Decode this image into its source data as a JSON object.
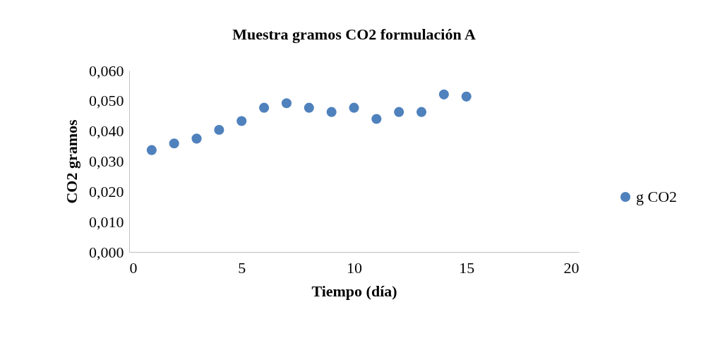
{
  "chart_data": {
    "type": "scatter",
    "title": "Muestra gramos CO2 formulación A",
    "xlabel": "Tiempo (día)",
    "ylabel": "CO2 gramos",
    "x": [
      1,
      2,
      3,
      4,
      5,
      6,
      7,
      8,
      9,
      10,
      11,
      12,
      13,
      14,
      15
    ],
    "series": [
      {
        "name": "g CO2",
        "color": "#4f81bd",
        "values": [
          0.0337,
          0.0359,
          0.0375,
          0.0404,
          0.0433,
          0.0477,
          0.0492,
          0.0477,
          0.0463,
          0.0477,
          0.044,
          0.0463,
          0.0463,
          0.0521,
          0.0514
        ]
      }
    ],
    "xlim": [
      0,
      20
    ],
    "xticks": [
      0,
      5,
      10,
      15,
      20
    ],
    "ylim": [
      0,
      0.06
    ],
    "yticks": [
      {
        "value": 0,
        "label": "0,000"
      },
      {
        "value": 0.01,
        "label": "0,010"
      },
      {
        "value": 0.02,
        "label": "0,020"
      },
      {
        "value": 0.03,
        "label": "0,030"
      },
      {
        "value": 0.04,
        "label": "0,040"
      },
      {
        "value": 0.05,
        "label": "0,050"
      },
      {
        "value": 0.06,
        "label": "0,060"
      }
    ],
    "grid": false,
    "legend": "right",
    "marker": "circle"
  }
}
